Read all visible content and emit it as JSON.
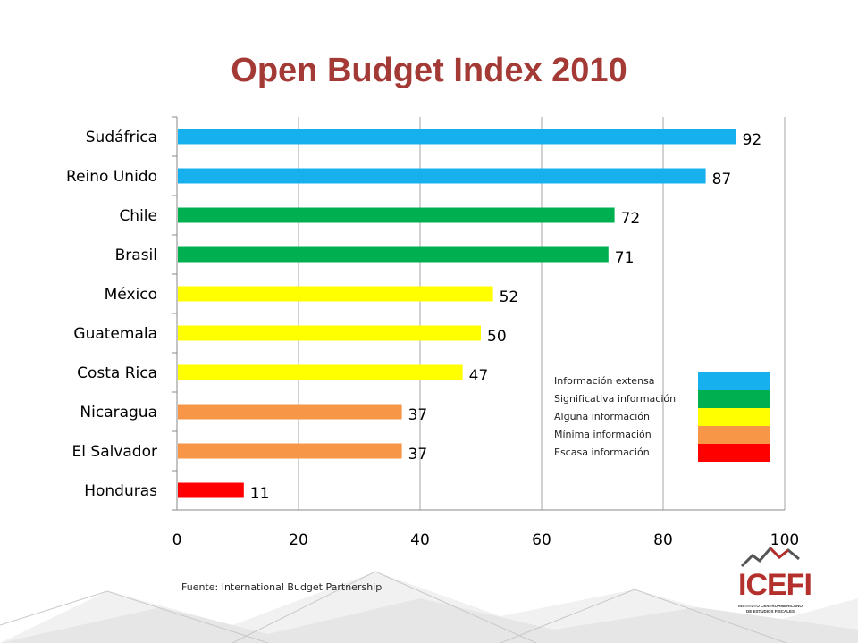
{
  "slide": {
    "title": "Open Budget Index 2010",
    "source": "Fuente: International Budget Partnership",
    "logo_text": "ICEFI",
    "logo_subtext": "INSTITUTO CENTROAMERICANO DE ESTUDIOS FISCALES"
  },
  "legend": [
    {
      "label": "Información extensa",
      "color": "#17b0ef"
    },
    {
      "label": "Significativa información",
      "color": "#00b050"
    },
    {
      "label": "Alguna información",
      "color": "#ffff00"
    },
    {
      "label": "Mínima información",
      "color": "#f79646"
    },
    {
      "label": "Escasa información",
      "color": "#ff0000"
    }
  ],
  "chart_data": {
    "type": "bar",
    "orientation": "horizontal",
    "title": "Open Budget Index 2010",
    "categories": [
      "Sudáfrica",
      "Reino Unido",
      "Chile",
      "Brasil",
      "México",
      "Guatemala",
      "Costa Rica",
      "Nicaragua",
      "El Salvador",
      "Honduras"
    ],
    "values": [
      92,
      87,
      72,
      71,
      52,
      50,
      47,
      37,
      37,
      11
    ],
    "bar_colors": [
      "#17b0ef",
      "#17b0ef",
      "#00b050",
      "#00b050",
      "#ffff00",
      "#ffff00",
      "#ffff00",
      "#f79646",
      "#f79646",
      "#ff0000"
    ],
    "xlim": [
      0,
      100
    ],
    "xticks": [
      "0",
      "20",
      "40",
      "60",
      "80",
      "100"
    ],
    "data_labels": true,
    "grid": "vertical"
  }
}
